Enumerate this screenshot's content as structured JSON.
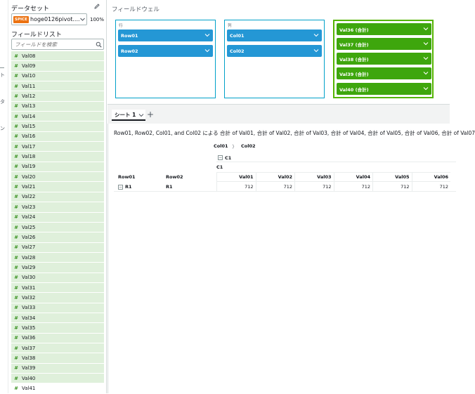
{
  "data_panel": {
    "title": "データセット",
    "dataset": {
      "badge": "SPICE",
      "name": "hoge0126pivot....",
      "spice_usage": "100%"
    },
    "field_list_title": "フィールドリスト",
    "search": {
      "placeholder": "フィールドを検索"
    },
    "fields": [
      "Val08",
      "Val09",
      "Val10",
      "Val11",
      "Val12",
      "Val13",
      "Val14",
      "Val15",
      "Val16",
      "Val17",
      "Val18",
      "Val19",
      "Val20",
      "Val21",
      "Val22",
      "Val23",
      "Val24",
      "Val25",
      "Val26",
      "Val27",
      "Val28",
      "Val29",
      "Val30",
      "Val31",
      "Val32",
      "Val33",
      "Val34",
      "Val35",
      "Val36",
      "Val37",
      "Val38",
      "Val39",
      "Val40",
      "Val41"
    ],
    "field_icon": "#"
  },
  "left_nav": {
    "glyphs": [
      "ト",
      "タ",
      "ン"
    ]
  },
  "field_wells": {
    "title": "フィールドウェル",
    "rows": {
      "label": "行",
      "items": [
        "Row01",
        "Row02"
      ]
    },
    "columns": {
      "label": "列",
      "items": [
        "Col01",
        "Col02"
      ]
    },
    "values": {
      "label": "",
      "items": [
        "Val36 (合計)",
        "Val37 (合計)",
        "Val38 (合計)",
        "Val39 (合計)",
        "Val40 (合計)"
      ]
    }
  },
  "sheet_bar": {
    "active_sheet": "シート 1",
    "add_icon": "+"
  },
  "visual": {
    "title": "Row01, Row02, Col01, and Col02 による 合計 of Val01, 合計 of Val02, 合計 of Val03, 合計 of Val04, 合計 of Val05, 合計 of Val06, 合計 of Val07",
    "column_breadcrumb": {
      "first": "Col01",
      "separator": "〉",
      "second": "Col02"
    },
    "column_group": {
      "toggle": "−",
      "label": "C1",
      "sub_label": "C1"
    },
    "row_headers": [
      "Row01",
      "Row02"
    ],
    "value_headers": [
      "Val01",
      "Val02",
      "Val03",
      "Val04",
      "Val05",
      "Val06"
    ],
    "rows": [
      {
        "toggle": "−",
        "row01": "R1",
        "row02": "R1",
        "values": [
          "712",
          "712",
          "712",
          "712",
          "712",
          "712"
        ]
      }
    ]
  },
  "colors": {
    "dimension_pill": "#2497d5",
    "measure_pill": "#3ea60d",
    "field_bg": "#dff0db",
    "spice_badge": "#ec7211",
    "well_border": "#00a1c9",
    "values_border": "#54b400"
  }
}
